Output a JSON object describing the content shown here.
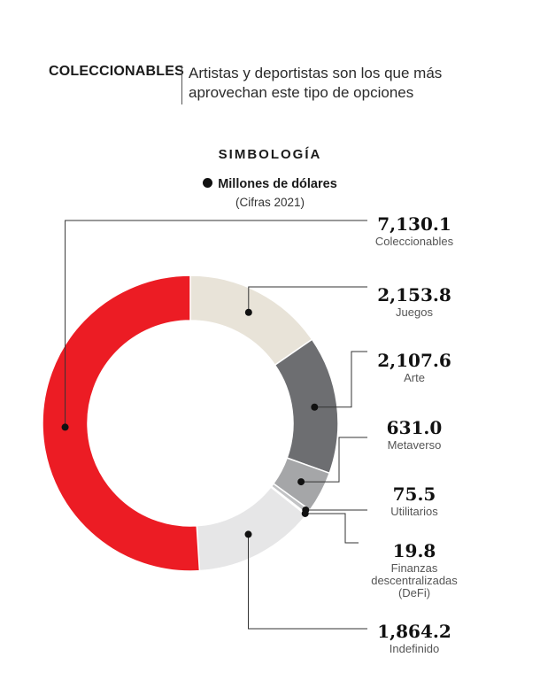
{
  "header": {
    "kicker": "COLECCIONABLES",
    "subtitle": "Artistas y deportistas son los que más aprovechan este tipo de opciones"
  },
  "legend": {
    "title": "SIMBOLOGÍA",
    "series_label": "Millones de dólares",
    "note": "(Cifras 2021)"
  },
  "chart_data": {
    "type": "pie",
    "variant": "donut",
    "unit": "Millones de dólares",
    "categories": [
      "Coleccionables",
      "Juegos",
      "Arte",
      "Metaverso",
      "Utilitarios",
      "Finanzas descentralizadas (DeFi)",
      "Indefinido"
    ],
    "values": [
      7130.1,
      2153.8,
      2107.6,
      631.0,
      75.5,
      19.8,
      1864.2
    ],
    "value_labels": [
      "7,130.1",
      "2,153.8",
      "2,107.6",
      "631.0",
      "75.5",
      "19.8",
      "1,864.2"
    ],
    "label_lines": [
      [
        "Coleccionables"
      ],
      [
        "Juegos"
      ],
      [
        "Arte"
      ],
      [
        "Metaverso"
      ],
      [
        "Utilitarios"
      ],
      [
        "Finanzas",
        "descentralizadas",
        "(DeFi)"
      ],
      [
        "Indefinido"
      ]
    ],
    "colors": [
      "#ec1c24",
      "#e8e3d8",
      "#6d6e71",
      "#a5a6a8",
      "#c2c3c5",
      "#8c8d90",
      "#e6e6e7"
    ],
    "legend_placement": "top-center"
  }
}
